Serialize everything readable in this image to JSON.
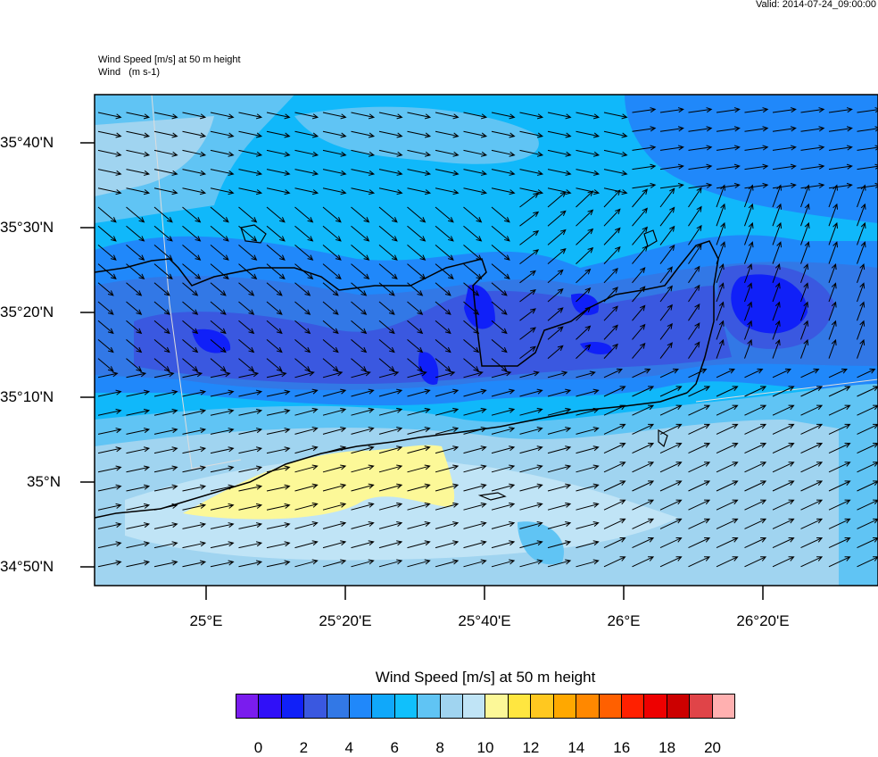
{
  "header": {
    "valid": "Valid: 2014-07-24_09:00:00",
    "field_title": "Wind Speed [m/s] at 50 m height",
    "vector_title": "Wind   (m s-1)"
  },
  "map": {
    "y_ticks": [
      "35°40'N",
      "35°30'N",
      "35°20'N",
      "35°10'N",
      "35°N",
      "34°50'N"
    ],
    "x_ticks": [
      "25°E",
      "25°20'E",
      "25°40'E",
      "26°E",
      "26°20'E"
    ]
  },
  "colorbar": {
    "title": "Wind Speed [m/s] at 50 m height",
    "labels": [
      "0",
      "2",
      "4",
      "6",
      "8",
      "10",
      "12",
      "14",
      "16",
      "18",
      "20"
    ],
    "colors": [
      "#7A1CEE",
      "#3010F8",
      "#1020F8",
      "#3A58E0",
      "#3278E6",
      "#2088FA",
      "#10A8FA",
      "#10C0FC",
      "#60C4F4",
      "#A0D4F0",
      "#C0E4F6",
      "#FCF898",
      "#FFE640",
      "#FFC820",
      "#FFA800",
      "#FF8800",
      "#FF6000",
      "#FF2000",
      "#EE0000",
      "#CC0000",
      "#E04448",
      "#FFB0B0"
    ]
  }
}
